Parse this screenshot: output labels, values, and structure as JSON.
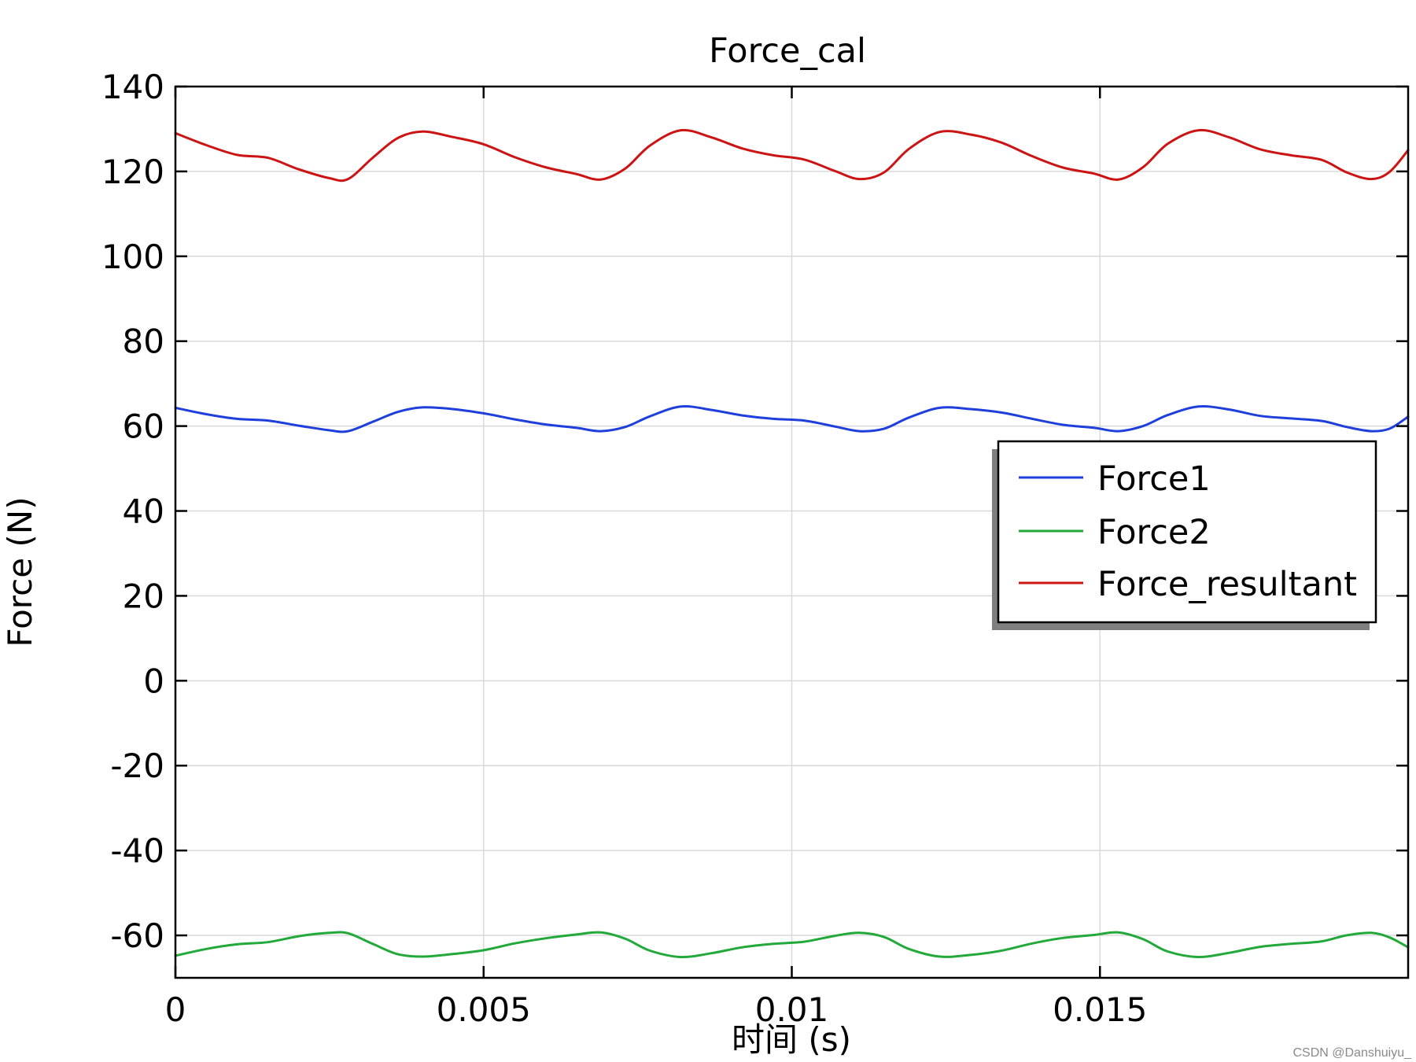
{
  "watermark": "CSDN @Danshuiyu_",
  "chart_data": {
    "type": "line",
    "title": "Force_cal",
    "xlabel": "时间 (s)",
    "ylabel": "Force (N)",
    "xlim": [
      0,
      0.02
    ],
    "ylim": [
      -70,
      140
    ],
    "xticks": [
      0,
      0.005,
      0.01,
      0.015
    ],
    "xtick_labels": [
      "0",
      "0.005",
      "0.01",
      "0.015"
    ],
    "yticks": [
      140,
      120,
      100,
      80,
      60,
      40,
      20,
      0,
      -20,
      -40,
      -60
    ],
    "ytick_labels": [
      "140",
      "120",
      "100",
      "80",
      "60",
      "40",
      "20",
      "0",
      "-20",
      "-40",
      "-60"
    ],
    "grid": true,
    "legend_position": "right-center",
    "series": [
      {
        "name": "Force1",
        "color": "#1f3fdc",
        "x": [
          0,
          0.0005,
          0.001,
          0.0015,
          0.002,
          0.0025,
          0.0028,
          0.0032,
          0.0036,
          0.004,
          0.0045,
          0.005,
          0.0055,
          0.006,
          0.0065,
          0.0069,
          0.0073,
          0.0077,
          0.0082,
          0.0087,
          0.0092,
          0.0097,
          0.0102,
          0.0107,
          0.0111,
          0.0115,
          0.0119,
          0.0124,
          0.0129,
          0.0134,
          0.0139,
          0.0144,
          0.0149,
          0.0153,
          0.0157,
          0.0161,
          0.0166,
          0.0171,
          0.0176,
          0.0181,
          0.0186,
          0.019,
          0.0194,
          0.0197,
          0.02
        ],
        "values": [
          64.3,
          62.8,
          61.7,
          61.3,
          60.1,
          59.0,
          58.8,
          61.0,
          63.3,
          64.4,
          64.0,
          63.0,
          61.6,
          60.4,
          59.6,
          58.8,
          59.8,
          62.3,
          64.6,
          63.8,
          62.5,
          61.7,
          61.3,
          59.9,
          58.8,
          59.4,
          62.0,
          64.3,
          64.0,
          63.2,
          61.7,
          60.3,
          59.6,
          58.8,
          60.0,
          62.6,
          64.6,
          63.9,
          62.4,
          61.8,
          61.2,
          59.8,
          58.8,
          59.4,
          62.2
        ]
      },
      {
        "name": "Force2",
        "color": "#22a93a",
        "x": [
          0,
          0.0005,
          0.001,
          0.0015,
          0.002,
          0.0025,
          0.0028,
          0.0032,
          0.0036,
          0.004,
          0.0045,
          0.005,
          0.0055,
          0.006,
          0.0065,
          0.0069,
          0.0073,
          0.0077,
          0.0082,
          0.0087,
          0.0092,
          0.0097,
          0.0102,
          0.0107,
          0.0111,
          0.0115,
          0.0119,
          0.0124,
          0.0129,
          0.0134,
          0.0139,
          0.0144,
          0.0149,
          0.0153,
          0.0157,
          0.0161,
          0.0166,
          0.0171,
          0.0176,
          0.0181,
          0.0186,
          0.019,
          0.0194,
          0.0197,
          0.02
        ],
        "values": [
          -64.8,
          -63.2,
          -62.1,
          -61.6,
          -60.2,
          -59.4,
          -59.5,
          -62.0,
          -64.4,
          -65.0,
          -64.4,
          -63.5,
          -61.9,
          -60.7,
          -59.8,
          -59.3,
          -60.8,
          -63.6,
          -65.1,
          -64.2,
          -62.8,
          -62.0,
          -61.5,
          -60.1,
          -59.4,
          -60.4,
          -63.2,
          -65.0,
          -64.6,
          -63.6,
          -61.9,
          -60.6,
          -59.9,
          -59.3,
          -60.9,
          -63.8,
          -65.1,
          -64.1,
          -62.7,
          -62.0,
          -61.4,
          -60.0,
          -59.4,
          -60.5,
          -62.8
        ]
      },
      {
        "name": "Force_resultant",
        "color": "#cc1414",
        "x": [
          0,
          0.0005,
          0.001,
          0.0015,
          0.002,
          0.0025,
          0.0028,
          0.0032,
          0.0036,
          0.004,
          0.0045,
          0.005,
          0.0055,
          0.006,
          0.0065,
          0.0069,
          0.0073,
          0.0077,
          0.0082,
          0.0087,
          0.0092,
          0.0097,
          0.0102,
          0.0107,
          0.0111,
          0.0115,
          0.0119,
          0.0124,
          0.0129,
          0.0134,
          0.0139,
          0.0144,
          0.0149,
          0.0153,
          0.0157,
          0.0161,
          0.0166,
          0.0171,
          0.0176,
          0.0181,
          0.0186,
          0.019,
          0.0194,
          0.0197,
          0.02
        ],
        "values": [
          129.0,
          126.2,
          123.9,
          123.2,
          120.5,
          118.4,
          118.2,
          123.2,
          127.8,
          129.4,
          128.1,
          126.4,
          123.4,
          121.0,
          119.4,
          118.1,
          120.7,
          126.1,
          129.7,
          128.0,
          125.4,
          123.8,
          122.8,
          120.1,
          118.2,
          119.8,
          125.3,
          129.3,
          128.7,
          126.8,
          123.6,
          120.9,
          119.5,
          118.1,
          121.0,
          126.5,
          129.7,
          128.0,
          125.2,
          123.8,
          122.7,
          119.8,
          118.2,
          119.9,
          125.0
        ]
      }
    ]
  }
}
